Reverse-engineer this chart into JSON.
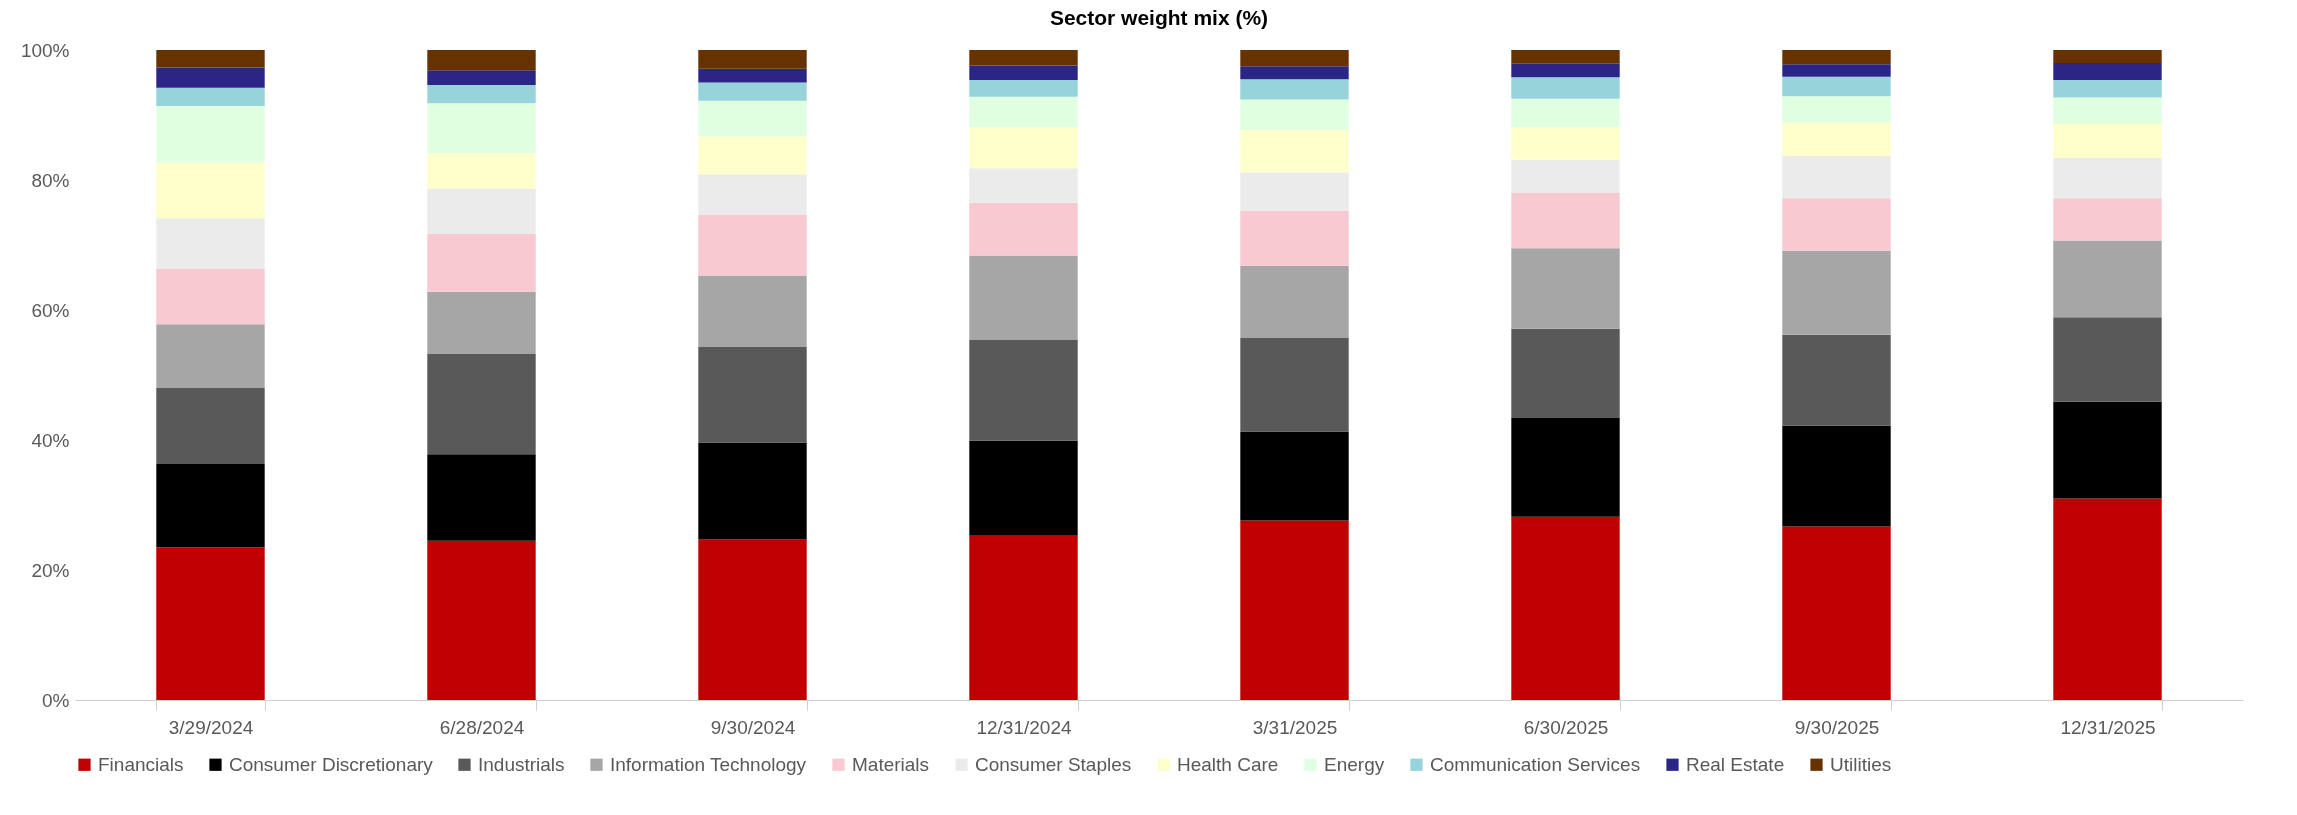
{
  "chart_data": {
    "type": "bar",
    "title": "Sector weight mix (%)",
    "stacked": true,
    "legend": "bottom",
    "grid": false,
    "categories": [
      "3/29/2024",
      "6/28/2024",
      "9/30/2024",
      "12/31/2024",
      "3/31/2025",
      "6/30/2025",
      "9/30/2025",
      "12/31/2025"
    ],
    "ylim": [
      0,
      100
    ],
    "yticks": [
      {
        "value": 0,
        "label": "0%"
      },
      {
        "value": 20,
        "label": "20%"
      },
      {
        "value": 40,
        "label": "40%"
      },
      {
        "value": 60,
        "label": "60%"
      },
      {
        "value": 80,
        "label": "80%"
      },
      {
        "value": 100,
        "label": "100%"
      }
    ],
    "series": [
      {
        "name": "Financials",
        "color": "#c00000",
        "values": [
          23.5,
          24.5,
          24.7,
          25.4,
          27.6,
          28.2,
          26.7,
          31.0
        ]
      },
      {
        "name": "Consumer Discretionary",
        "color": "#000000",
        "values": [
          12.8,
          13.3,
          14.9,
          14.5,
          13.7,
          15.2,
          15.5,
          14.9
        ]
      },
      {
        "name": "Industrials",
        "color": "#595959",
        "values": [
          11.7,
          15.5,
          14.8,
          15.5,
          14.4,
          13.7,
          14.0,
          13.0
        ]
      },
      {
        "name": "Information Technology",
        "color": "#a6a6a6",
        "values": [
          9.8,
          9.5,
          10.9,
          13.0,
          11.1,
          12.4,
          12.9,
          11.8
        ]
      },
      {
        "name": "Materials",
        "color": "#f8c9d0",
        "values": [
          8.5,
          8.9,
          9.3,
          8.1,
          8.5,
          8.5,
          8.1,
          6.5
        ]
      },
      {
        "name": "Consumer Staples",
        "color": "#ebebeb",
        "values": [
          7.8,
          7.0,
          6.3,
          5.3,
          5.9,
          5.1,
          6.5,
          6.2
        ]
      },
      {
        "name": "Health Care",
        "color": "#ffffcc",
        "values": [
          8.6,
          5.4,
          5.8,
          6.3,
          6.5,
          5.0,
          5.1,
          5.2
        ]
      },
      {
        "name": "Energy",
        "color": "#e0ffe0",
        "values": [
          8.7,
          7.7,
          5.5,
          4.7,
          4.7,
          4.4,
          4.1,
          4.1
        ]
      },
      {
        "name": "Communication Services",
        "color": "#97d3db",
        "values": [
          2.8,
          2.8,
          2.8,
          2.6,
          3.1,
          3.3,
          3.0,
          2.7
        ]
      },
      {
        "name": "Real Estate",
        "color": "#2b2586",
        "values": [
          3.1,
          2.3,
          2.1,
          2.2,
          2.0,
          2.1,
          1.9,
          2.6
        ]
      },
      {
        "name": "Utilities",
        "color": "#663300",
        "values": [
          2.7,
          3.1,
          2.9,
          2.4,
          2.5,
          2.1,
          2.2,
          2.0
        ]
      }
    ]
  }
}
